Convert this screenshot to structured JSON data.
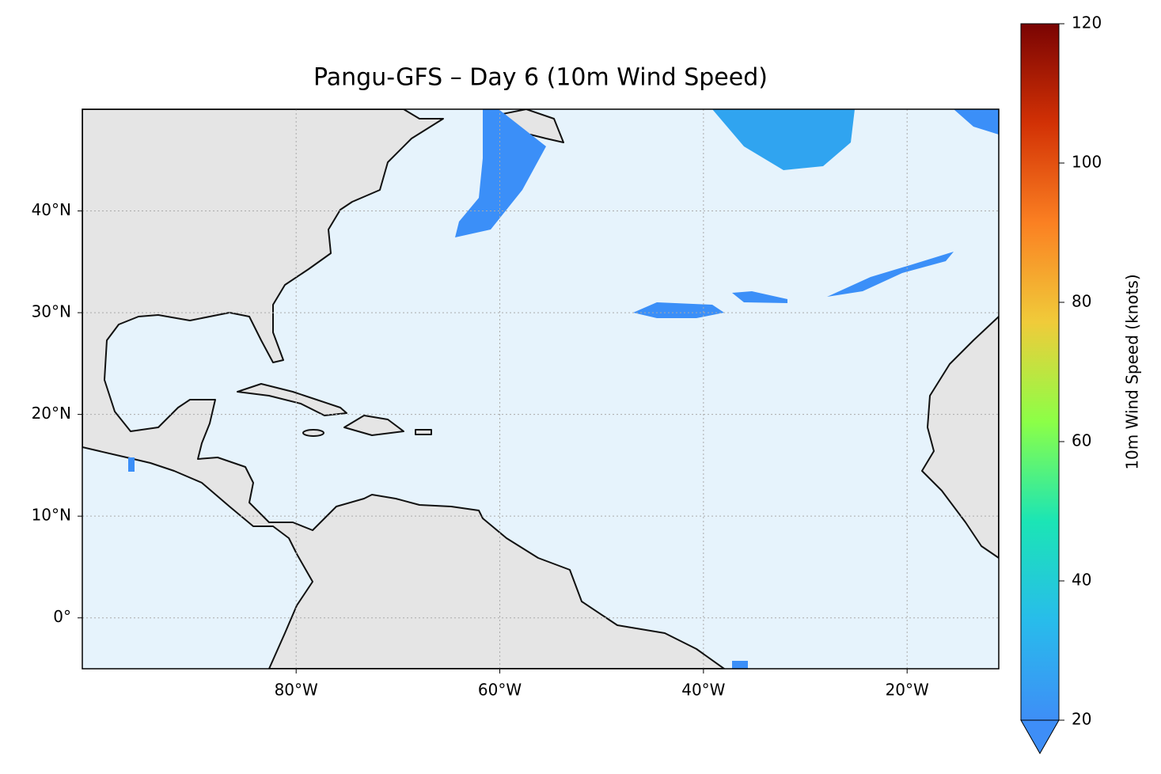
{
  "chart_data": {
    "type": "map",
    "title": "Pangu-GFS – Day 6 (10m Wind Speed)",
    "xlim": [
      -101,
      -11
    ],
    "ylim": [
      -5,
      50
    ],
    "xticks": [
      {
        "value": -80,
        "label": "80°W"
      },
      {
        "value": -60,
        "label": "60°W"
      },
      {
        "value": -40,
        "label": "40°W"
      },
      {
        "value": -20,
        "label": "20°W"
      }
    ],
    "yticks": [
      {
        "value": 0,
        "label": "0°"
      },
      {
        "value": 10,
        "label": "10°N"
      },
      {
        "value": 20,
        "label": "20°N"
      },
      {
        "value": 30,
        "label": "30°N"
      },
      {
        "value": 40,
        "label": "40°N"
      }
    ],
    "grid": true,
    "colorbar": {
      "label": "10m Wind Speed (knots)",
      "lim": [
        20,
        120
      ],
      "ticks": [
        20,
        40,
        60,
        80,
        100,
        120
      ],
      "colormap": [
        "#3e8ef7",
        "#28bceb",
        "#1be5b5",
        "#8cff47",
        "#f0cb3a",
        "#fb8022",
        "#d23105",
        "#7a0403"
      ]
    }
  }
}
